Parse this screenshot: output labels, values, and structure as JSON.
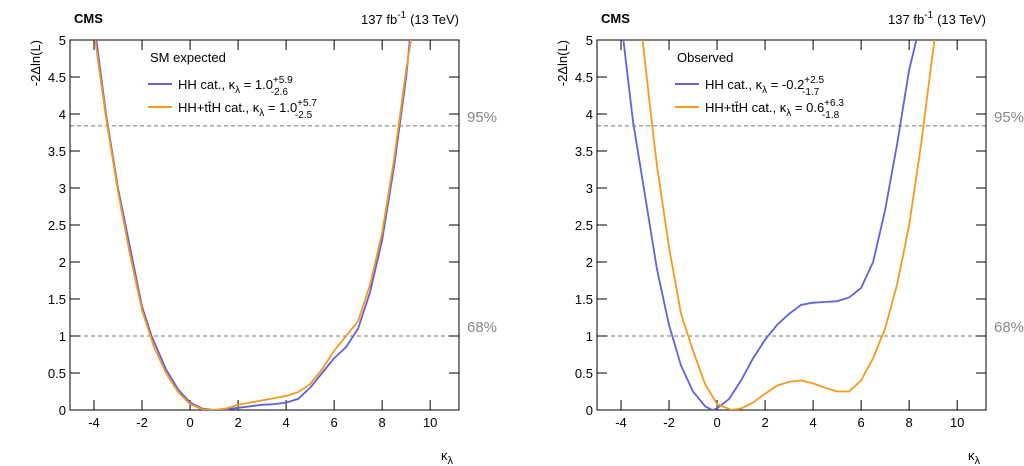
{
  "chart_data": [
    {
      "type": "line",
      "cms_label": "CMS",
      "lumi": "137 fb",
      "lumi_exp": "-1",
      "lumi_energy": "(13 TeV)",
      "legend_title": "SM expected",
      "x_label": "κ",
      "x_label_sub": "λ",
      "y_label": "-2Δln(L)",
      "xlim": [
        -5,
        11.2
      ],
      "xticks": [
        -4,
        -2,
        0,
        2,
        4,
        6,
        8,
        10
      ],
      "ylim": [
        0,
        5
      ],
      "yticks": [
        0,
        0.5,
        1,
        1.5,
        2,
        2.5,
        3,
        3.5,
        4,
        4.5,
        5
      ],
      "reference_lines": [
        {
          "value": 3.84,
          "label": "95%"
        },
        {
          "value": 1,
          "label": "68%"
        }
      ],
      "series": [
        {
          "name": "HH cat., κ",
          "name_sub": "λ",
          "name_rest": " = 1.0",
          "err_up": "+5.9",
          "err_down": "-2.6",
          "color": "#6060e0",
          "x": [
            -3.9,
            -3.5,
            -3,
            -2.5,
            -2,
            -1.6,
            -1,
            -0.5,
            0,
            0.5,
            1,
            1.5,
            2,
            2.5,
            3,
            3.5,
            4,
            4.5,
            5,
            5.5,
            6,
            6.5,
            7,
            7.5,
            8,
            8.5,
            9,
            9.15
          ],
          "values": [
            5,
            4,
            3,
            2.2,
            1.4,
            1.0,
            0.55,
            0.28,
            0.1,
            0.02,
            0,
            0.01,
            0.03,
            0.05,
            0.07,
            0.08,
            0.1,
            0.15,
            0.3,
            0.5,
            0.7,
            0.85,
            1.1,
            1.6,
            2.3,
            3.3,
            4.5,
            5
          ]
        },
        {
          "name": "HH+tt̄H cat., κ",
          "name_sub": "λ",
          "name_rest": " = 1.0",
          "err_up": "+5.7",
          "err_down": "-2.5",
          "color": "#f59a1a",
          "x": [
            -3.95,
            -3.5,
            -3,
            -2.5,
            -2,
            -1.5,
            -1,
            -0.5,
            0,
            0.5,
            1,
            1.5,
            2,
            2.5,
            3,
            3.5,
            4,
            4.5,
            5,
            5.5,
            6,
            6.5,
            7,
            7.5,
            8,
            8.5,
            9,
            9.2
          ],
          "values": [
            5,
            3.95,
            2.95,
            2.1,
            1.35,
            0.85,
            0.5,
            0.24,
            0.08,
            0.01,
            0,
            0.02,
            0.07,
            0.1,
            0.13,
            0.16,
            0.19,
            0.24,
            0.35,
            0.55,
            0.8,
            1.0,
            1.2,
            1.7,
            2.4,
            3.4,
            4.6,
            5
          ]
        }
      ]
    },
    {
      "type": "line",
      "cms_label": "CMS",
      "lumi": "137 fb",
      "lumi_exp": "-1",
      "lumi_energy": "(13 TeV)",
      "legend_title": "Observed",
      "x_label": "κ",
      "x_label_sub": "λ",
      "y_label": "-2Δln(L)",
      "xlim": [
        -5,
        11.2
      ],
      "xticks": [
        -4,
        -2,
        0,
        2,
        4,
        6,
        8,
        10
      ],
      "ylim": [
        0,
        5
      ],
      "yticks": [
        0,
        0.5,
        1,
        1.5,
        2,
        2.5,
        3,
        3.5,
        4,
        4.5,
        5
      ],
      "reference_lines": [
        {
          "value": 3.84,
          "label": "95%"
        },
        {
          "value": 1,
          "label": "68%"
        }
      ],
      "series": [
        {
          "name": "HH cat., κ",
          "name_sub": "λ",
          "name_rest": " = -0.2",
          "err_up": "+2.5",
          "err_down": "-1.7",
          "color": "#6060e0",
          "x": [
            -3.9,
            -3.5,
            -3,
            -2.5,
            -2,
            -1.5,
            -1,
            -0.5,
            -0.2,
            0,
            0.5,
            1,
            1.5,
            2,
            2.5,
            3,
            3.5,
            4,
            4.5,
            5,
            5.5,
            6,
            6.5,
            7,
            7.5,
            8,
            8.3
          ],
          "values": [
            5,
            3.9,
            2.9,
            1.9,
            1.15,
            0.6,
            0.25,
            0.05,
            0,
            0.02,
            0.15,
            0.4,
            0.7,
            0.95,
            1.15,
            1.3,
            1.42,
            1.45,
            1.46,
            1.47,
            1.52,
            1.65,
            2.0,
            2.7,
            3.6,
            4.6,
            5
          ]
        },
        {
          "name": "HH+tt̄H cat., κ",
          "name_sub": "λ",
          "name_rest": " = 0.6",
          "err_up": "+6.3",
          "err_down": "-1.8",
          "color": "#f59a1a",
          "x": [
            -3.1,
            -2.7,
            -2.5,
            -2,
            -1.5,
            -1.2,
            -1,
            -0.5,
            0,
            0.6,
            1,
            1.5,
            2,
            2.5,
            3,
            3.5,
            4,
            4.5,
            5,
            5.5,
            6,
            6.5,
            7,
            7.5,
            8,
            8.5,
            9.05
          ],
          "values": [
            5,
            3.84,
            3.3,
            2.2,
            1.3,
            1.0,
            0.8,
            0.35,
            0.08,
            0,
            0.02,
            0.1,
            0.22,
            0.33,
            0.38,
            0.4,
            0.36,
            0.3,
            0.25,
            0.25,
            0.4,
            0.7,
            1.1,
            1.7,
            2.5,
            3.6,
            5
          ]
        }
      ]
    }
  ]
}
